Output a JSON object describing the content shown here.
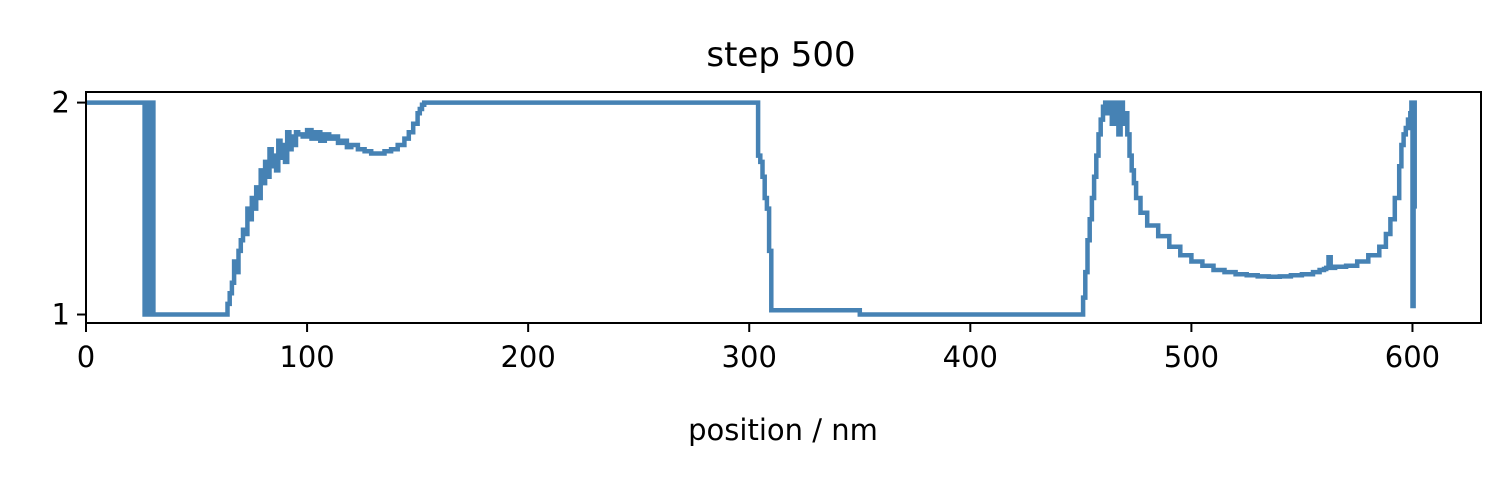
{
  "chart_data": {
    "type": "line",
    "title": "step 500",
    "xlabel": "position / nm",
    "ylabel": "",
    "xlim": [
      0,
      631
    ],
    "ylim": [
      0.96,
      2.05
    ],
    "xticks": [
      0,
      100,
      200,
      300,
      400,
      500,
      600
    ],
    "yticks": [
      1,
      2
    ],
    "grid": false,
    "line_color": "#4682b4",
    "series": [
      {
        "x": [
          0,
          26,
          26.5,
          27,
          27.5,
          28,
          28.5,
          29,
          29.5,
          30,
          30.5,
          31,
          40,
          50,
          63,
          64,
          65,
          66,
          67,
          68,
          69,
          70,
          71,
          72,
          73,
          74,
          75,
          76,
          77,
          78,
          79,
          80,
          81,
          82,
          83,
          84,
          85,
          86,
          87,
          88,
          89,
          90,
          91,
          92,
          93,
          94,
          95,
          96,
          98,
          100,
          102,
          104,
          106,
          108,
          110,
          112,
          114,
          116,
          118,
          120,
          123,
          126,
          129,
          132,
          135,
          138,
          141,
          144,
          146,
          148,
          150,
          151,
          152,
          153,
          154,
          155,
          200,
          250,
          303,
          304,
          305,
          306,
          307,
          308,
          309,
          310,
          350,
          400,
          449,
          450,
          451,
          452,
          453,
          454,
          455,
          456,
          457,
          458,
          459,
          460,
          461,
          462,
          463,
          464,
          465,
          466,
          467,
          468,
          469,
          470,
          471,
          472,
          473,
          474,
          475,
          477,
          480,
          485,
          490,
          495,
          500,
          505,
          510,
          515,
          520,
          525,
          530,
          535,
          540,
          545,
          550,
          555,
          558,
          560,
          561,
          562,
          563,
          565,
          570,
          575,
          580,
          585,
          588,
          590,
          592,
          594,
          595,
          596,
          597,
          598,
          599,
          599.5,
          600,
          600.5,
          601
        ],
        "y": [
          2,
          2,
          1,
          2,
          1,
          2,
          1,
          2,
          1,
          2,
          1,
          1,
          1,
          1,
          1,
          1.05,
          1.1,
          1.15,
          1.25,
          1.2,
          1.3,
          1.35,
          1.4,
          1.38,
          1.5,
          1.45,
          1.55,
          1.5,
          1.6,
          1.55,
          1.68,
          1.62,
          1.72,
          1.65,
          1.78,
          1.7,
          1.75,
          1.68,
          1.82,
          1.74,
          1.8,
          1.72,
          1.86,
          1.78,
          1.84,
          1.8,
          1.86,
          1.85,
          1.84,
          1.87,
          1.83,
          1.86,
          1.82,
          1.85,
          1.83,
          1.84,
          1.81,
          1.82,
          1.79,
          1.8,
          1.78,
          1.77,
          1.76,
          1.76,
          1.77,
          1.78,
          1.8,
          1.83,
          1.86,
          1.9,
          1.95,
          1.97,
          1.99,
          2,
          2,
          2,
          2,
          2,
          2,
          1.75,
          1.72,
          1.65,
          1.55,
          1.5,
          1.3,
          1.02,
          1,
          1,
          1,
          1,
          1.08,
          1.2,
          1.35,
          1.45,
          1.55,
          1.65,
          1.75,
          1.85,
          1.92,
          1.98,
          2,
          1.95,
          2,
          1.9,
          2,
          1.95,
          1.85,
          2,
          1.9,
          1.95,
          1.85,
          1.75,
          1.68,
          1.62,
          1.55,
          1.48,
          1.42,
          1.37,
          1.32,
          1.28,
          1.25,
          1.23,
          1.21,
          1.2,
          1.19,
          1.185,
          1.18,
          1.178,
          1.18,
          1.185,
          1.19,
          1.2,
          1.21,
          1.215,
          1.22,
          1.27,
          1.22,
          1.225,
          1.23,
          1.25,
          1.28,
          1.32,
          1.38,
          1.45,
          1.55,
          1.7,
          1.8,
          1.85,
          1.88,
          1.92,
          1.95,
          2,
          1.04,
          2,
          1.5
        ]
      }
    ]
  }
}
